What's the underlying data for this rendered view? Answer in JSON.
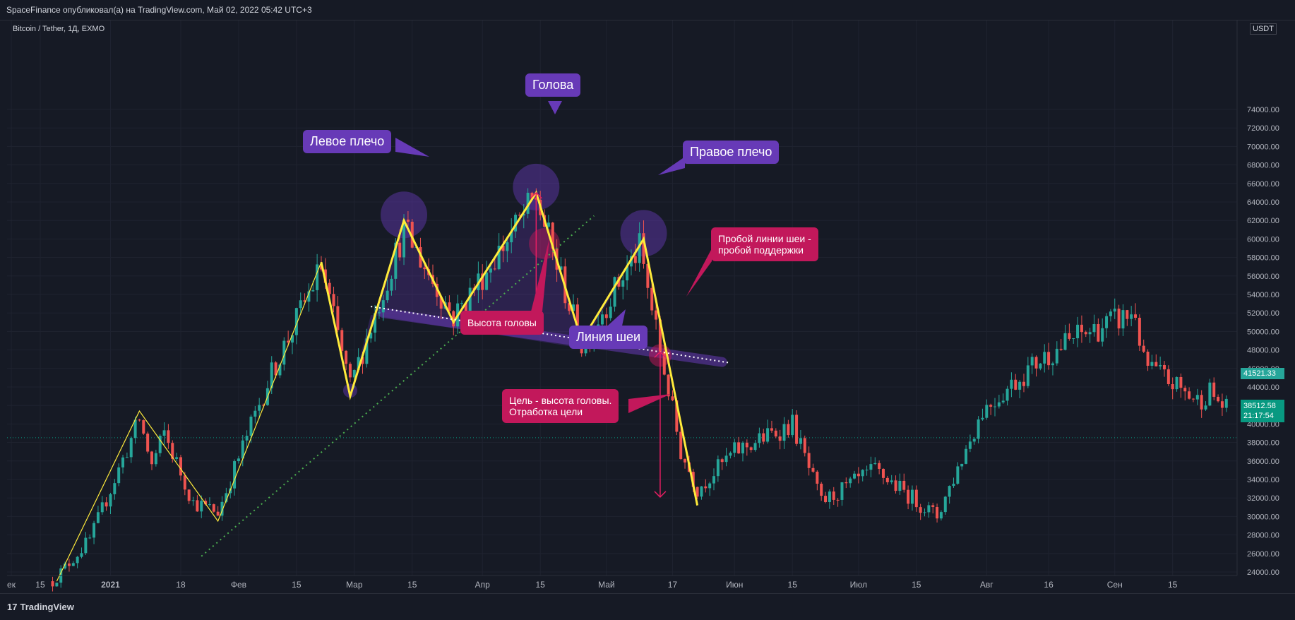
{
  "header": {
    "published": "SpaceFinance опубликовал(а) на TradingView.com, Май 02, 2022 05:42 UTC+3"
  },
  "symbol": "Bitcoin / Tether, 1Д, EXMO",
  "currency": "USDT",
  "footer": {
    "brand": "TradingView",
    "brand_mark": "17"
  },
  "price_badges": {
    "last": "41521.33",
    "current": "38512.58",
    "countdown": "21:17:54",
    "last_color": "#26a69a",
    "current_color": "#089981"
  },
  "annotations": {
    "left_shoulder": "Левое плечо",
    "head": "Голова",
    "right_shoulder": "Правое плечо",
    "neckline": "Линия шеи",
    "head_height": "Высота головы",
    "breakout_line1": "Пробой линии шеи -",
    "breakout_line2": "пробой поддержки",
    "target_line1": "Цель - высота головы.",
    "target_line2": "Отработка цели"
  },
  "colors": {
    "up": "#26a69a",
    "down": "#ef5350",
    "background": "#161a25",
    "yellow": "#ffeb3b",
    "purple": "#673ab7",
    "red_label": "#c2185b"
  },
  "chart_data": {
    "type": "candlestick",
    "y_axis": {
      "range": [
        22400,
        74200
      ],
      "ticks": [
        24000,
        26000,
        28000,
        30000,
        32000,
        34000,
        36000,
        38000,
        40000,
        42000,
        44000,
        46000,
        48000,
        50000,
        52000,
        54000,
        56000,
        58000,
        60000,
        62000,
        64000,
        66000,
        68000,
        70000,
        72000,
        74000
      ],
      "tick_labels": [
        "24000.00",
        "26000.00",
        "28000.00",
        "30000.00",
        "32000.00",
        "34000.00",
        "36000.00",
        "38000.00",
        "40000.00",
        "42000.00",
        "44000.00",
        "46000.00",
        "48000.00",
        "50000.00",
        "52000.00",
        "54000.00",
        "56000.00",
        "58000.00",
        "60000.00",
        "62000.00",
        "64000.00",
        "66000.00",
        "68000.00",
        "70000.00",
        "72000.00",
        "74000.00"
      ]
    },
    "x_axis": {
      "ticks": [
        {
          "label": "ек",
          "date": "2020-12-08"
        },
        {
          "label": "15",
          "date": "2020-12-15"
        },
        {
          "label": "2021",
          "date": "2021-01-01"
        },
        {
          "label": "18",
          "date": "2021-01-18"
        },
        {
          "label": "Фев",
          "date": "2021-02-01"
        },
        {
          "label": "15",
          "date": "2021-02-15"
        },
        {
          "label": "Мар",
          "date": "2021-03-01"
        },
        {
          "label": "15",
          "date": "2021-03-15"
        },
        {
          "label": "Апр",
          "date": "2021-04-01"
        },
        {
          "label": "15",
          "date": "2021-04-15"
        },
        {
          "label": "Май",
          "date": "2021-05-01"
        },
        {
          "label": "17",
          "date": "2021-05-17"
        },
        {
          "label": "Июн",
          "date": "2021-06-01"
        },
        {
          "label": "15",
          "date": "2021-06-15"
        },
        {
          "label": "Июл",
          "date": "2021-07-01"
        },
        {
          "label": "15",
          "date": "2021-07-15"
        },
        {
          "label": "Авг",
          "date": "2021-08-01"
        },
        {
          "label": "16",
          "date": "2021-08-16"
        },
        {
          "label": "Сен",
          "date": "2021-09-01"
        },
        {
          "label": "15",
          "date": "2021-09-15"
        }
      ]
    },
    "price_path": [
      {
        "date": "2020-12-18",
        "price": 23000
      },
      {
        "date": "2020-12-27",
        "price": 27500
      },
      {
        "date": "2021-01-08",
        "price": 40500
      },
      {
        "date": "2021-01-11",
        "price": 35500
      },
      {
        "date": "2021-01-14",
        "price": 39000
      },
      {
        "date": "2021-01-21",
        "price": 31500
      },
      {
        "date": "2021-01-27",
        "price": 30500
      },
      {
        "date": "2021-02-08",
        "price": 44500
      },
      {
        "date": "2021-02-21",
        "price": 57000
      },
      {
        "date": "2021-02-28",
        "price": 44000
      },
      {
        "date": "2021-03-13",
        "price": 61000
      },
      {
        "date": "2021-03-25",
        "price": 51500
      },
      {
        "date": "2021-04-14",
        "price": 64500
      },
      {
        "date": "2021-04-25",
        "price": 48500
      },
      {
        "date": "2021-05-09",
        "price": 59000
      },
      {
        "date": "2021-05-19",
        "price": 37000
      },
      {
        "date": "2021-05-23",
        "price": 33000
      },
      {
        "date": "2021-06-01",
        "price": 37000
      },
      {
        "date": "2021-06-15",
        "price": 40000
      },
      {
        "date": "2021-06-22",
        "price": 31500
      },
      {
        "date": "2021-07-05",
        "price": 35000
      },
      {
        "date": "2021-07-20",
        "price": 30000
      },
      {
        "date": "2021-07-31",
        "price": 41500
      },
      {
        "date": "2021-08-14",
        "price": 47000
      },
      {
        "date": "2021-08-23",
        "price": 49500
      },
      {
        "date": "2021-09-06",
        "price": 52000
      },
      {
        "date": "2021-09-08",
        "price": 46500
      },
      {
        "date": "2021-09-21",
        "price": 42500
      },
      {
        "date": "2021-09-24",
        "price": 43500
      },
      {
        "date": "2021-09-28",
        "price": 41500
      }
    ],
    "zigzag_thin": [
      {
        "date": "2020-12-19",
        "price": 23000
      },
      {
        "date": "2021-01-08",
        "price": 41400
      },
      {
        "date": "2021-01-27",
        "price": 29500
      },
      {
        "date": "2021-02-21",
        "price": 57500
      }
    ],
    "zigzag_pattern": [
      {
        "date": "2021-02-21",
        "price": 57500
      },
      {
        "date": "2021-02-28",
        "price": 43000
      },
      {
        "date": "2021-03-13",
        "price": 62000
      },
      {
        "date": "2021-03-25",
        "price": 51000
      },
      {
        "date": "2021-04-14",
        "price": 65000
      },
      {
        "date": "2021-04-25",
        "price": 49000
      },
      {
        "date": "2021-05-10",
        "price": 60000
      },
      {
        "date": "2021-05-23",
        "price": 31200
      }
    ],
    "neckline": [
      {
        "date": "2021-03-05",
        "price": 52700
      },
      {
        "date": "2021-05-31",
        "price": 46600
      }
    ],
    "trendline": [
      {
        "date": "2021-01-23",
        "price": 25700
      },
      {
        "date": "2021-04-28",
        "price": 62500
      }
    ],
    "current_price": 38512.58,
    "last_price": 41521.33
  }
}
